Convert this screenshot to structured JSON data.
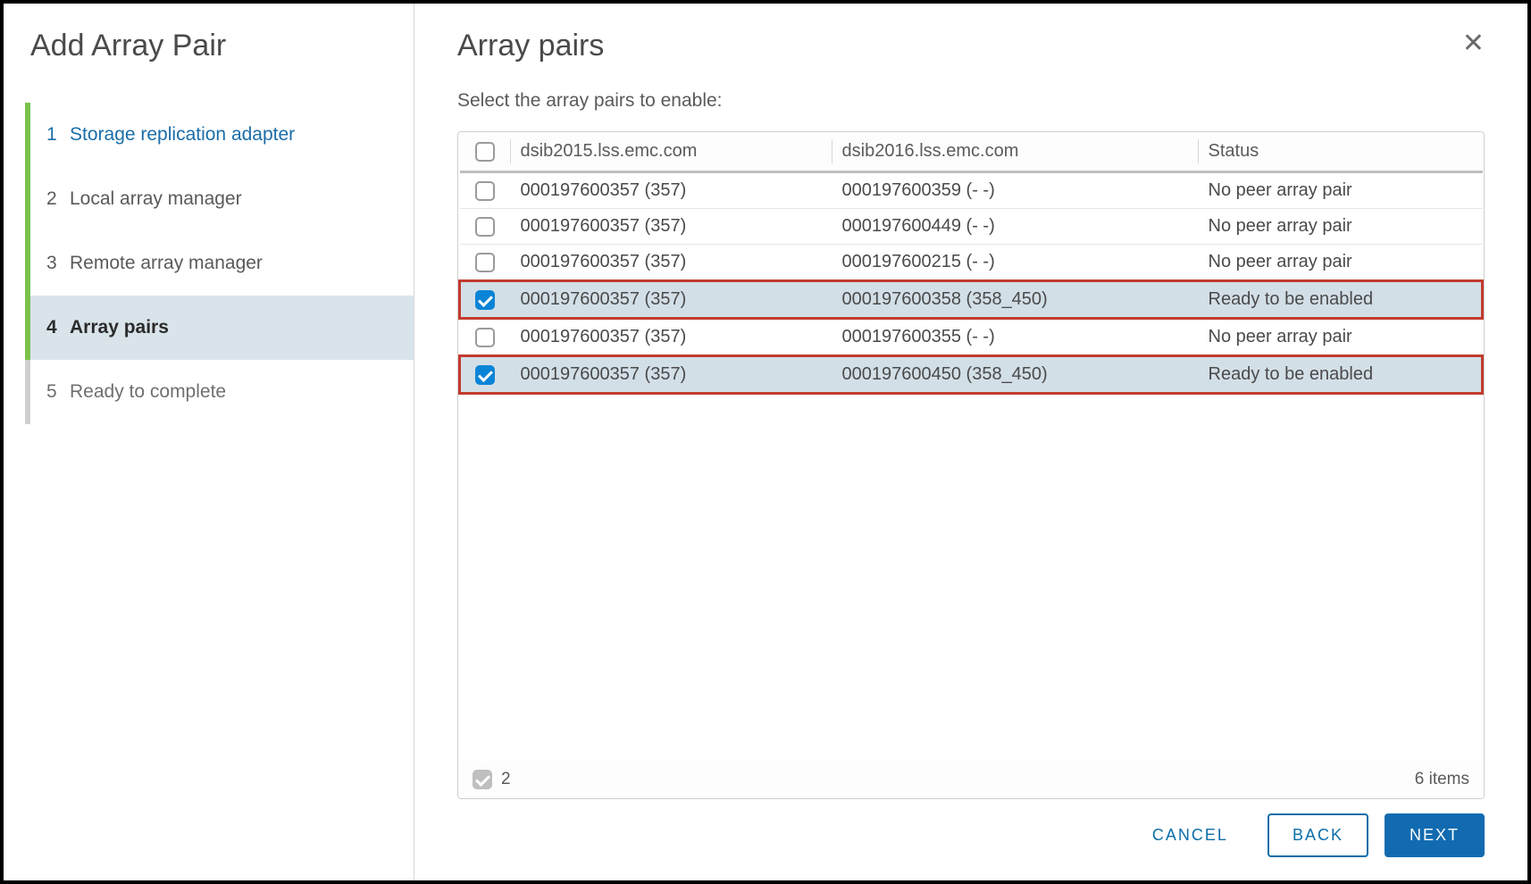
{
  "sidebar": {
    "title": "Add Array Pair",
    "steps": [
      {
        "num": "1",
        "label": "Storage replication adapter",
        "state": "done"
      },
      {
        "num": "2",
        "label": "Local array manager",
        "state": "normal"
      },
      {
        "num": "3",
        "label": "Remote array manager",
        "state": "normal"
      },
      {
        "num": "4",
        "label": "Array pairs",
        "state": "active"
      },
      {
        "num": "5",
        "label": "Ready to complete",
        "state": "pending"
      }
    ]
  },
  "content": {
    "title": "Array pairs",
    "subtitle": "Select the array pairs to enable:"
  },
  "table": {
    "columns": {
      "col1": "dsib2015.lss.emc.com",
      "col2": "dsib2016.lss.emc.com",
      "col3": "Status"
    },
    "rows": [
      {
        "checked": false,
        "highlight": false,
        "c1": "000197600357 (357)",
        "c2": "000197600359 (- -)",
        "c3": "No peer array pair"
      },
      {
        "checked": false,
        "highlight": false,
        "c1": "000197600357 (357)",
        "c2": "000197600449 (- -)",
        "c3": "No peer array pair"
      },
      {
        "checked": false,
        "highlight": false,
        "c1": "000197600357 (357)",
        "c2": "000197600215 (- -)",
        "c3": "No peer array pair"
      },
      {
        "checked": true,
        "highlight": true,
        "c1": "000197600357 (357)",
        "c2": "000197600358 (358_450)",
        "c3": "Ready to be enabled"
      },
      {
        "checked": false,
        "highlight": false,
        "c1": "000197600357 (357)",
        "c2": "000197600355 (- -)",
        "c3": "No peer array pair"
      },
      {
        "checked": true,
        "highlight": true,
        "c1": "000197600357 (357)",
        "c2": "000197600450 (358_450)",
        "c3": "Ready to be enabled"
      }
    ],
    "footer": {
      "selected_count": "2",
      "items_label": "6 items"
    }
  },
  "buttons": {
    "cancel": "CANCEL",
    "back": "BACK",
    "next": "NEXT"
  },
  "colors": {
    "accent_green": "#7bc24b",
    "accent_blue": "#126bb0",
    "link_blue": "#1a6da8",
    "checkbox_blue": "#0a84d6",
    "highlight_red": "#c23b2e",
    "row_selected_bg": "#d3dfe7",
    "step_active_bg": "#d9e4ea"
  }
}
